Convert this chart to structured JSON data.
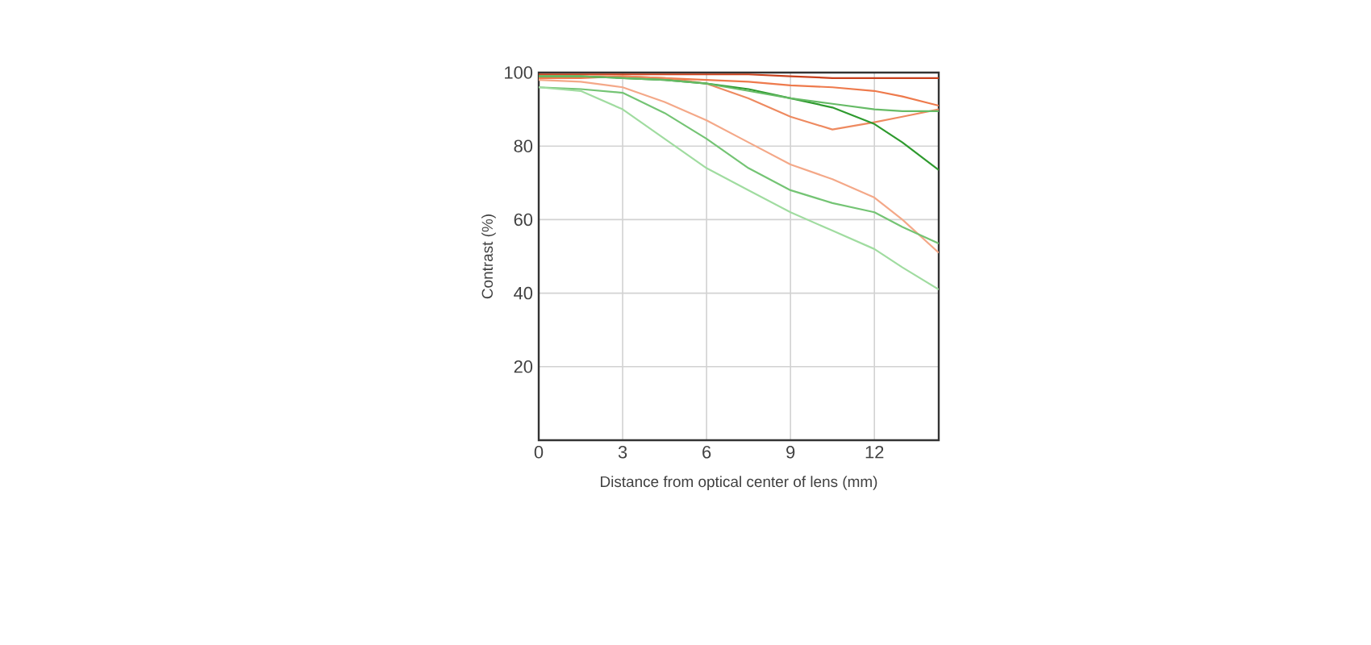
{
  "chart_data": {
    "type": "line",
    "xlabel": "Distance from optical center of lens (mm)",
    "ylabel": "Contrast (%)",
    "x": [
      0,
      1.5,
      3,
      4.5,
      6,
      7.5,
      9,
      10.5,
      12,
      13,
      14.3
    ],
    "xlim": [
      0,
      14.3
    ],
    "ylim": [
      0,
      100
    ],
    "xticks": [
      0,
      3,
      6,
      9,
      12
    ],
    "yticks": [
      20,
      40,
      60,
      80,
      100
    ],
    "grid": true,
    "line_style": "solid",
    "series": [
      {
        "color": "#c8401c",
        "values": [
          99.5,
          99.5,
          99.5,
          99.5,
          99.5,
          99.5,
          99,
          98.5,
          98.5,
          98.5,
          98.5
        ]
      },
      {
        "color": "#ee7a4c",
        "values": [
          98.5,
          98.5,
          99,
          98.5,
          98,
          97.5,
          96.5,
          96,
          95,
          93.5,
          91
        ]
      },
      {
        "color": "#ee8a60",
        "values": [
          99,
          99,
          99,
          98.5,
          97,
          93,
          88,
          84.5,
          86.5,
          88,
          90
        ]
      },
      {
        "color": "#f4a888",
        "values": [
          98,
          97.5,
          96,
          92,
          87,
          81,
          75,
          71,
          66,
          60,
          51
        ]
      },
      {
        "color": "#2e9a2e",
        "values": [
          99,
          99,
          98.5,
          98,
          97,
          95.5,
          93,
          90.5,
          86,
          81,
          73.5
        ]
      },
      {
        "color": "#66bb66",
        "values": [
          99,
          99,
          98.5,
          98,
          97,
          95,
          93,
          91.5,
          90,
          89.5,
          89.5
        ]
      },
      {
        "color": "#74c474",
        "values": [
          96,
          95.5,
          94.5,
          89,
          82,
          74,
          68,
          64.5,
          62,
          58,
          53.5
        ]
      },
      {
        "color": "#a0dca0",
        "values": [
          96,
          95,
          90,
          82,
          74,
          68,
          62,
          57,
          52,
          47,
          41
        ]
      }
    ]
  }
}
